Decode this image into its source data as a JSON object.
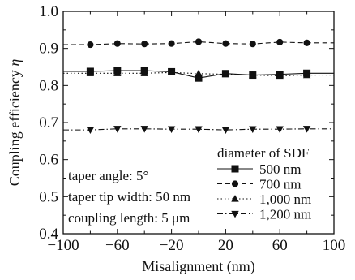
{
  "chart_data": {
    "type": "line",
    "title": "",
    "xlabel": "Misalignment (nm)",
    "ylabel_text": "Coupling efficiency ",
    "ylabel_symbol": "η",
    "xlim": [
      -100,
      100
    ],
    "ylim": [
      0.4,
      1.0
    ],
    "xticks": [
      -100,
      -60,
      -20,
      20,
      60,
      100
    ],
    "yticks": [
      0.4,
      0.5,
      0.6,
      0.7,
      0.8,
      0.9,
      1.0
    ],
    "xtick_labels": [
      "−100",
      "−60",
      "−20",
      "20",
      "60",
      "100"
    ],
    "ytick_labels": [
      "0.4",
      "0.5",
      "0.6",
      "0.7",
      "0.8",
      "0.9",
      "1.0"
    ],
    "grid": false,
    "legend": {
      "title": "diameter of SDF",
      "placement": "bottom-right"
    },
    "annotations": [
      "taper angle: 5°",
      "taper tip width: 50 nm",
      "coupling length: 5 μm"
    ],
    "x": [
      -80,
      -60,
      -40,
      -20,
      0,
      20,
      40,
      60,
      80
    ],
    "series": [
      {
        "name": "500 nm",
        "marker": "square",
        "dash": "solid",
        "values": [
          0.838,
          0.84,
          0.84,
          0.837,
          0.82,
          0.832,
          0.828,
          0.83,
          0.833
        ]
      },
      {
        "name": "700 nm",
        "marker": "circle",
        "dash": "dashed",
        "values": [
          0.91,
          0.913,
          0.912,
          0.913,
          0.918,
          0.913,
          0.912,
          0.917,
          0.915
        ]
      },
      {
        "name": "1,000 nm",
        "marker": "triangle-up",
        "dash": "dotted",
        "values": [
          0.833,
          0.833,
          0.833,
          0.835,
          0.832,
          0.83,
          0.828,
          0.826,
          0.828
        ]
      },
      {
        "name": "1,200 nm",
        "marker": "triangle-down",
        "dash": "dashdot",
        "values": [
          0.68,
          0.683,
          0.683,
          0.682,
          0.682,
          0.68,
          0.682,
          0.682,
          0.683
        ]
      }
    ]
  }
}
